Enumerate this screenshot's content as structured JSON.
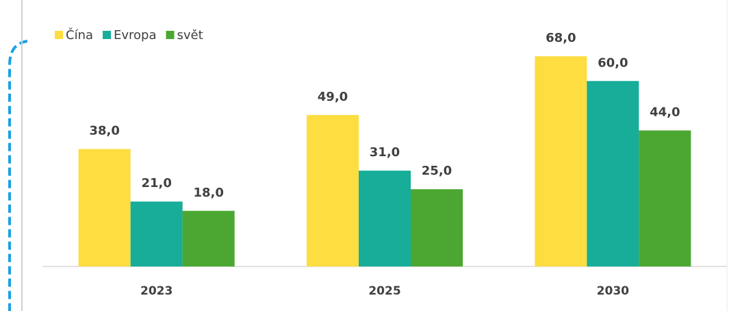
{
  "chart_data": {
    "type": "bar",
    "categories": [
      "2023",
      "2025",
      "2030"
    ],
    "series": [
      {
        "name": "Čína",
        "color": "#fddd3f",
        "values": [
          38,
          49,
          68
        ],
        "value_labels": [
          "38,0",
          "49,0",
          "68,0"
        ]
      },
      {
        "name": "Evropa",
        "color": "#17ad99",
        "values": [
          21,
          31,
          60
        ],
        "value_labels": [
          "21,0",
          "31,0",
          "60,0"
        ]
      },
      {
        "name": "svět",
        "color": "#4ba731",
        "values": [
          18,
          25,
          44
        ],
        "value_labels": [
          "18,0",
          "25,0",
          "44,0"
        ]
      }
    ],
    "ylim": [
      0,
      80
    ],
    "legend": "top-left"
  }
}
